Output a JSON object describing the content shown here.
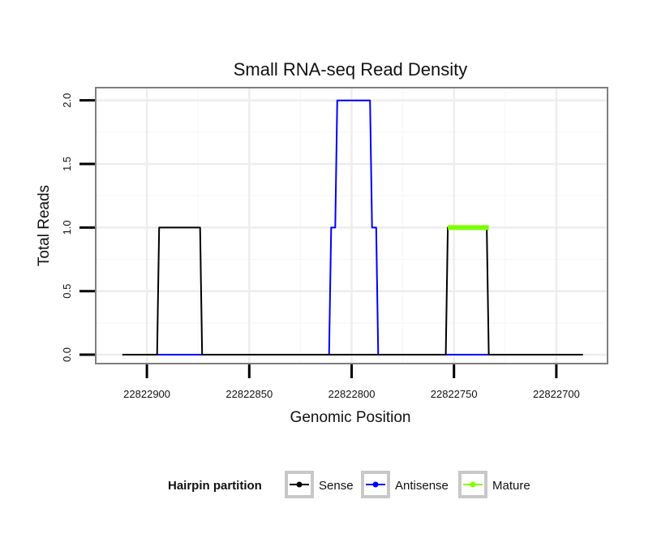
{
  "chart_data": {
    "type": "line",
    "title": "Small RNA-seq Read Density",
    "xlabel": "Genomic Position",
    "ylabel": "Total Reads",
    "x_reversed": true,
    "xlim": [
      22822925,
      22822675
    ],
    "ylim": [
      -0.07,
      2.1
    ],
    "x_ticks": [
      22822900,
      22822850,
      22822800,
      22822750,
      22822700
    ],
    "x_tick_labels": [
      "22822900",
      "22822850",
      "22822800",
      "22822750",
      "22822700"
    ],
    "y_ticks": [
      0,
      0.5,
      1,
      1.5,
      2
    ],
    "y_tick_labels": [
      "0.0",
      "0.5",
      "1.0",
      "1.5",
      "2.0"
    ],
    "grid": true,
    "legend": {
      "title": "Hairpin partition",
      "position": "bottom",
      "entries": [
        "Sense",
        "Antisense",
        "Mature"
      ]
    },
    "series": [
      {
        "name": "Sense",
        "color": "#000000",
        "x": [
          22822912,
          22822895,
          22822894,
          22822874,
          22822873,
          22822827,
          22822826,
          22822808,
          22822807,
          22822754,
          22822753,
          22822734,
          22822733,
          22822687
        ],
        "y": [
          0,
          0,
          1,
          1,
          0,
          0,
          0,
          0,
          0,
          0,
          1,
          1,
          0,
          0
        ]
      },
      {
        "name": "Antisense",
        "color": "#0000ff",
        "x": [
          22822895,
          22822873,
          22822872,
          22822811,
          22822810,
          22822808,
          22822807,
          22822791,
          22822790,
          22822788,
          22822787,
          22822753,
          22822733
        ],
        "y": [
          0,
          0,
          0,
          0,
          1,
          1,
          2,
          2,
          1,
          1,
          0,
          0,
          0
        ]
      },
      {
        "name": "Mature",
        "color": "#80ff00",
        "x": [
          22822753,
          22822733
        ],
        "y": [
          1,
          1
        ]
      }
    ]
  }
}
